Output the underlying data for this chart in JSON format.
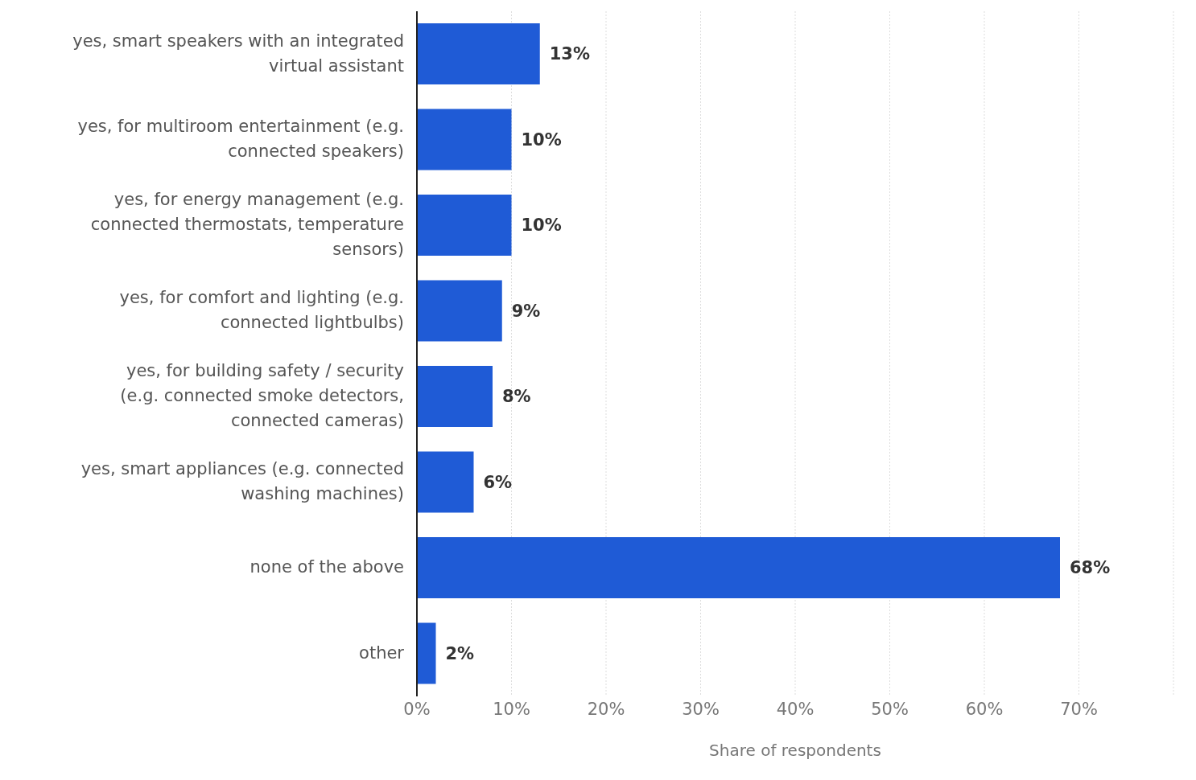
{
  "chart_data": {
    "type": "bar",
    "orientation": "horizontal",
    "xlabel": "Share of respondents",
    "categories": [
      "yes, smart speakers with an integrated virtual assistant",
      "yes, for multiroom entertainment (e.g. connected speakers)",
      "yes, for energy management (e.g. connected thermostats, temperature sensors)",
      "yes, for comfort and lighting (e.g. connected lightbulbs)",
      "yes, for building safety / security (e.g. connected smoke detectors, connected cameras)",
      "yes, smart appliances (e.g. connected washing machines)",
      "none of the above",
      "other"
    ],
    "values": [
      13,
      10,
      10,
      9,
      8,
      6,
      68,
      2
    ],
    "value_labels": [
      "13%",
      "10%",
      "10%",
      "9%",
      "8%",
      "6%",
      "68%",
      "2%"
    ],
    "color": "#1f5bd6",
    "xlim": [
      0,
      80
    ],
    "xticks": [
      {
        "value": 0,
        "label": "0%"
      },
      {
        "value": 10,
        "label": "10%"
      },
      {
        "value": 20,
        "label": "20%"
      },
      {
        "value": 30,
        "label": "30%"
      },
      {
        "value": 40,
        "label": "40%"
      },
      {
        "value": 50,
        "label": "50%"
      },
      {
        "value": 60,
        "label": "60%"
      },
      {
        "value": 70,
        "label": "70%"
      },
      {
        "value": 80,
        "label": null
      }
    ],
    "grid": "x"
  }
}
